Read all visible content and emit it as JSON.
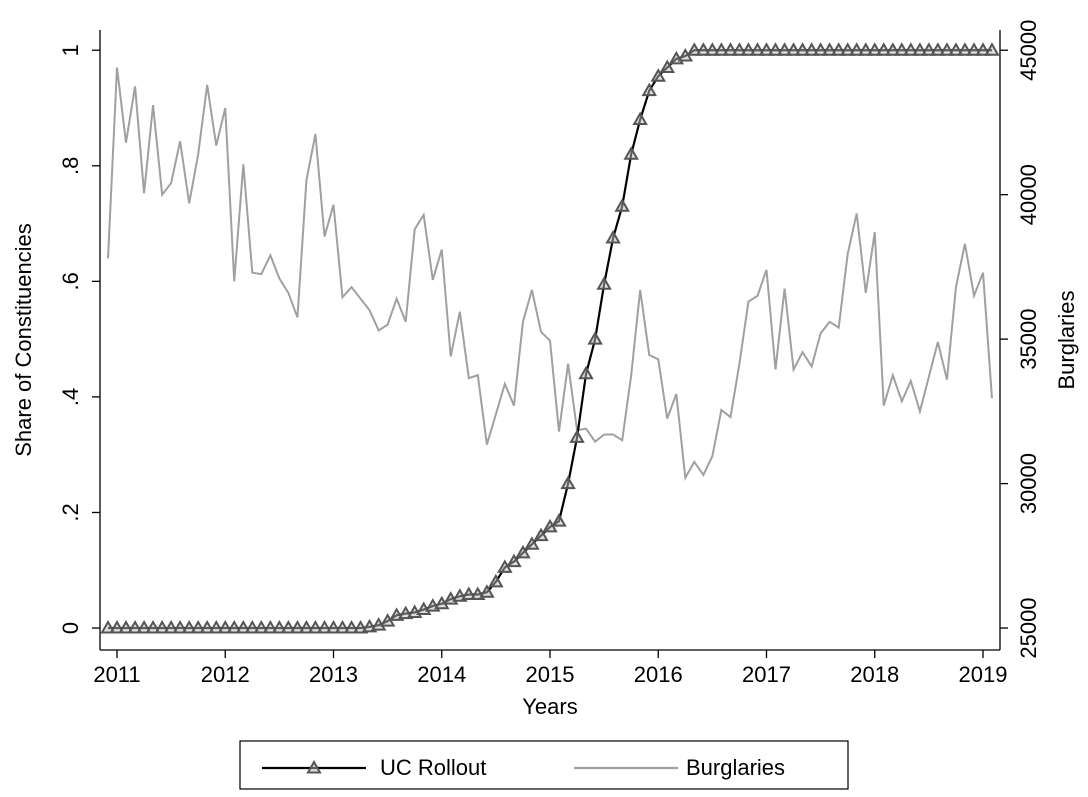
{
  "chart_data": {
    "type": "line",
    "xlabel": "Years",
    "ylabel": "Share of  Constituencies",
    "y2label": "Burglaries",
    "x": [
      2010.917,
      2011,
      2011.083,
      2011.167,
      2011.25,
      2011.333,
      2011.417,
      2011.5,
      2011.583,
      2011.667,
      2011.75,
      2011.833,
      2011.917,
      2012,
      2012.083,
      2012.167,
      2012.25,
      2012.333,
      2012.417,
      2012.5,
      2012.583,
      2012.667,
      2012.75,
      2012.833,
      2012.917,
      2013,
      2013.083,
      2013.167,
      2013.25,
      2013.333,
      2013.417,
      2013.5,
      2013.583,
      2013.667,
      2013.75,
      2013.833,
      2013.917,
      2014,
      2014.083,
      2014.167,
      2014.25,
      2014.333,
      2014.417,
      2014.5,
      2014.583,
      2014.667,
      2014.75,
      2014.833,
      2014.917,
      2015,
      2015.083,
      2015.167,
      2015.25,
      2015.333,
      2015.417,
      2015.5,
      2015.583,
      2015.667,
      2015.75,
      2015.833,
      2015.917,
      2016,
      2016.083,
      2016.167,
      2016.25,
      2016.333,
      2016.417,
      2016.5,
      2016.583,
      2016.667,
      2016.75,
      2016.833,
      2016.917,
      2017,
      2017.083,
      2017.167,
      2017.25,
      2017.333,
      2017.417,
      2017.5,
      2017.583,
      2017.667,
      2017.75,
      2017.833,
      2017.917,
      2018,
      2018.083,
      2018.167,
      2018.25,
      2018.333,
      2018.417,
      2018.5,
      2018.583,
      2018.667,
      2018.75,
      2018.833,
      2018.917,
      2019,
      2019.083
    ],
    "series": [
      {
        "name": "UC Rollout",
        "color": "#000000",
        "marker": "triangle",
        "marker_color": "#555555",
        "values": [
          0,
          0,
          0,
          0,
          0,
          0,
          0,
          0,
          0,
          0,
          0,
          0,
          0,
          0,
          0,
          0,
          0,
          0,
          0,
          0,
          0,
          0,
          0,
          0,
          0,
          0,
          0,
          0,
          0,
          0.002,
          0.005,
          0.012,
          0.022,
          0.025,
          0.027,
          0.032,
          0.038,
          0.042,
          0.05,
          0.055,
          0.058,
          0.058,
          0.062,
          0.08,
          0.105,
          0.115,
          0.13,
          0.145,
          0.16,
          0.175,
          0.185,
          0.25,
          0.33,
          0.44,
          0.5,
          0.595,
          0.675,
          0.73,
          0.82,
          0.88,
          0.93,
          0.955,
          0.97,
          0.985,
          0.99,
          1,
          1,
          1,
          1,
          1,
          1,
          1,
          1,
          1,
          1,
          1,
          1,
          1,
          1,
          1,
          1,
          1,
          1,
          1,
          1,
          1,
          1,
          1,
          1,
          1,
          1,
          1,
          1,
          1,
          1,
          1,
          1,
          1,
          1
        ]
      },
      {
        "name": "Burglaries",
        "color": "#a0a0a0",
        "axis": "y2",
        "values": [
          37800,
          44400,
          41800,
          43750,
          40050,
          43100,
          40000,
          40400,
          41850,
          39700,
          41400,
          43800,
          41700,
          43000,
          37000,
          41050,
          37300,
          37250,
          37900,
          37100,
          36600,
          35750,
          40500,
          42100,
          38550,
          39650,
          36450,
          36800,
          36400,
          36000,
          35300,
          35500,
          36400,
          35600,
          38800,
          39300,
          37050,
          38100,
          34400,
          35950,
          33650,
          33750,
          31350,
          32400,
          33450,
          32700,
          35600,
          36700,
          35250,
          34950,
          31800,
          34150,
          31850,
          31900,
          31450,
          31700,
          31700,
          31500,
          33750,
          36700,
          34450,
          34300,
          32250,
          33100,
          30200,
          30750,
          30300,
          30950,
          32550,
          32300,
          34150,
          36300,
          36500,
          37400,
          33950,
          36750,
          33950,
          34550,
          34050,
          35200,
          35600,
          35400,
          37950,
          39350,
          36600,
          38700,
          32700,
          33750,
          32850,
          33550,
          32500,
          33700,
          34900,
          33600,
          36800,
          38300,
          36500,
          37300,
          32950
        ]
      }
    ],
    "xlim": [
      2010.843,
      2019.157
    ],
    "xticks": [
      2011,
      2012,
      2013,
      2014,
      2015,
      2016,
      2017,
      2018,
      2019
    ],
    "ylim": [
      -0.038,
      1.035
    ],
    "yticks": [
      0,
      {
        "value": 0.2,
        "label": ".2"
      },
      {
        "value": 0.4,
        "label": ".4"
      },
      {
        "value": 0.6,
        "label": ".6"
      },
      {
        "value": 0.8,
        "label": ".8"
      },
      1
    ],
    "y2lim": [
      24240,
      45700
    ],
    "y2ticks": [
      25000,
      30000,
      35000,
      40000,
      45000
    ],
    "grid": false,
    "legend": "bottom"
  }
}
